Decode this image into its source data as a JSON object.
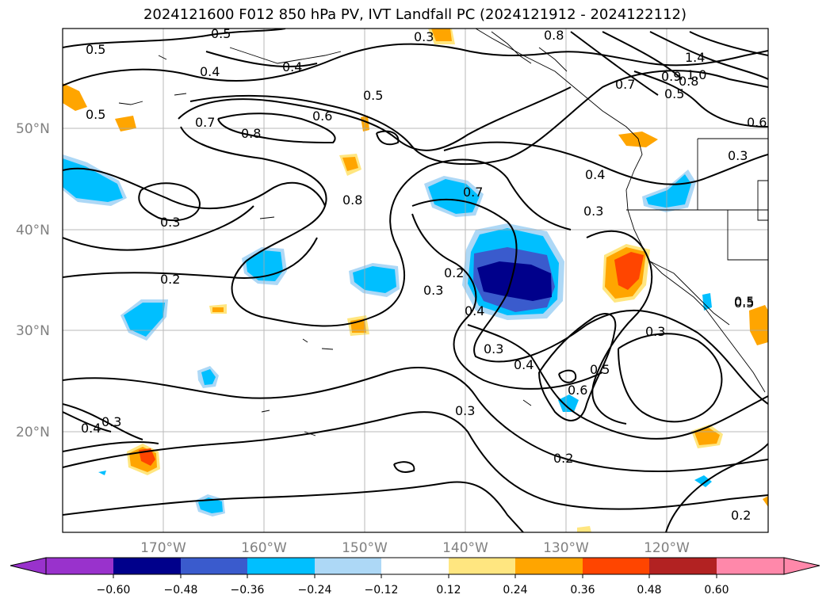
{
  "title": "2024121600 F012 850 hPa PV, IVT Landfall PC (2024121912 - 2024122112)",
  "lat_labels": [
    "50°N",
    "40°N",
    "30°N",
    "20°N"
  ],
  "lon_labels": [
    "170°W",
    "160°W",
    "150°W",
    "140°W",
    "130°W",
    "120°W"
  ],
  "contour_labels": [
    "0.5",
    "0.5",
    "0.3",
    "0.8",
    "0.4",
    "0.4",
    "0.5",
    "0.5",
    "0.7",
    "0.6",
    "0.8",
    "0.5",
    "1.4",
    "1.0",
    "0.9",
    "0.8",
    "0.7",
    "0.5",
    "0.6",
    "0.3",
    "0.4",
    "0.3",
    "0.7",
    "0.8",
    "0.3",
    "0.2",
    "0.2",
    "0.3",
    "0.4",
    "0.3",
    "0.4",
    "0.5",
    "0.6",
    "0.3",
    "0.3",
    "0.4",
    "0.3",
    "0.2",
    "0.5",
    "0.2"
  ],
  "colorbar": {
    "tick_labels": [
      "−0.60",
      "−0.48",
      "−0.36",
      "−0.24",
      "−0.12",
      "0.12",
      "0.24",
      "0.36",
      "0.48",
      "0.60"
    ],
    "colors": [
      "#9932cc",
      "#00008b",
      "#3a5bcd",
      "#00bfff",
      "#add8f6",
      "#ffffff",
      "#ffe680",
      "#ffa500",
      "#ff4500",
      "#b22222",
      "#ff88aa"
    ]
  },
  "colors": {
    "neg_strong": "#00008b",
    "neg_mid": "#3a5bcd",
    "neg": "#00bfff",
    "neg_light": "#add8f6",
    "pos_light": "#ffe680",
    "pos": "#ffa500",
    "pos_mid": "#ff4500"
  }
}
